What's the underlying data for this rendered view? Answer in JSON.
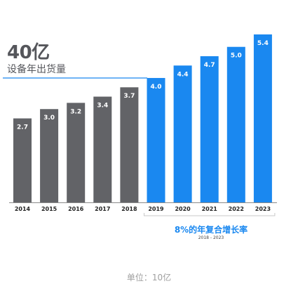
{
  "headline": "40亿",
  "subhead": "设备年出货量",
  "cagr": {
    "label": "8%的年复合增长率",
    "range": "2018 - 2023"
  },
  "unit_note": "单位：10亿",
  "colors": {
    "historical": "#626367",
    "forecast": "#1a88f0",
    "headline": "#55565b"
  },
  "chart_data": {
    "type": "bar",
    "title": "",
    "xlabel": "",
    "ylabel": "",
    "categories": [
      "2014",
      "2015",
      "2016",
      "2017",
      "2018",
      "2019",
      "2020",
      "2021",
      "2022",
      "2023"
    ],
    "values": [
      2.7,
      3.0,
      3.2,
      3.4,
      3.7,
      4.0,
      4.4,
      4.7,
      5.0,
      5.4
    ],
    "labels": [
      "2.7",
      "3.0",
      "3.2",
      "3.4",
      "3.7",
      "4.0",
      "4.4",
      "4.7",
      "5.0",
      "5.4"
    ],
    "series_split": {
      "historical_until": "2018",
      "forecast_from": "2019"
    },
    "reference_line": {
      "value": 4.0,
      "label": "40亿"
    },
    "ylim": [
      0,
      5.4
    ],
    "grid": false,
    "legend": "none"
  }
}
